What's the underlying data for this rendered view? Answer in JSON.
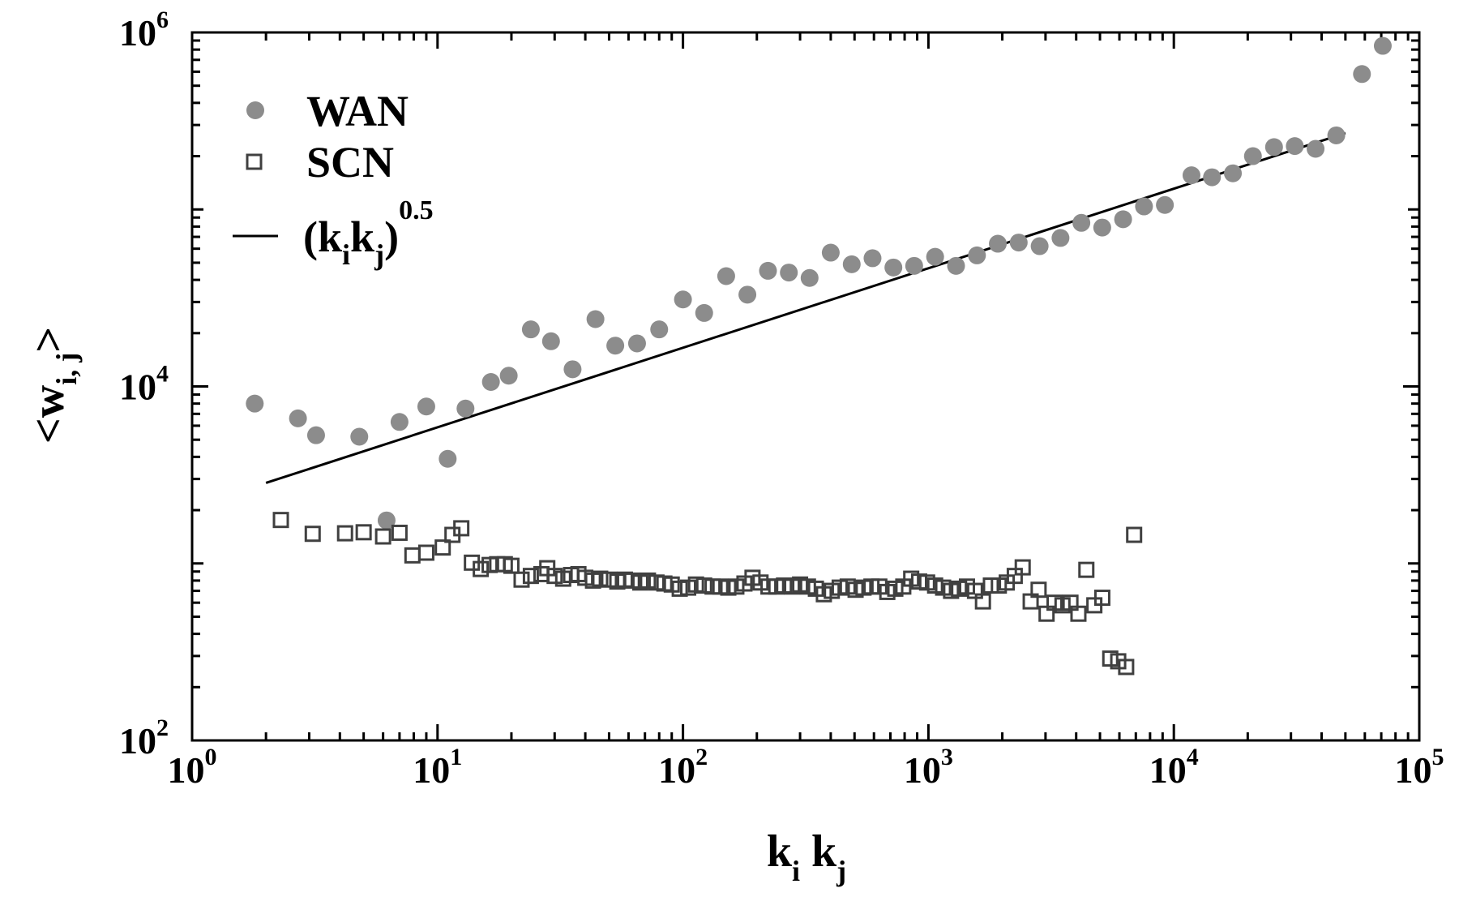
{
  "chart_data": {
    "type": "scatter",
    "xscale": "log",
    "yscale": "log",
    "xlim": [
      1,
      100000
    ],
    "ylim": [
      100,
      1000000
    ],
    "grid": false,
    "legend_position": "top-left",
    "x_ticks": [
      {
        "base": "10",
        "exp": "0",
        "value": 1
      },
      {
        "base": "10",
        "exp": "1",
        "value": 10
      },
      {
        "base": "10",
        "exp": "2",
        "value": 100
      },
      {
        "base": "10",
        "exp": "3",
        "value": 1000
      },
      {
        "base": "10",
        "exp": "4",
        "value": 10000
      },
      {
        "base": "10",
        "exp": "5",
        "value": 100000
      }
    ],
    "y_ticks": [
      {
        "base": "10",
        "exp": "2",
        "value": 100
      },
      {
        "base": "10",
        "exp": "4",
        "value": 10000
      },
      {
        "base": "10",
        "exp": "6",
        "value": 1000000
      }
    ],
    "xlabel": {
      "k1": "k",
      "s1": "i",
      "k2": "k",
      "s2": "j"
    },
    "ylabel": {
      "open": "<w",
      "sub": "i, j",
      "close": ">"
    },
    "series": [
      {
        "name": "WAN",
        "marker": "filled-circle",
        "color": "#8c8c8c",
        "points": [
          [
            1.8,
            8000
          ],
          [
            2.7,
            6600
          ],
          [
            3.2,
            5300
          ],
          [
            4.8,
            5200
          ],
          [
            7.0,
            6300
          ],
          [
            9.0,
            7700
          ],
          [
            11.0,
            3900
          ],
          [
            13.0,
            7500
          ],
          [
            16.5,
            10600
          ],
          [
            19.5,
            11500
          ],
          [
            24.0,
            21000
          ],
          [
            29.0,
            18000
          ],
          [
            35.5,
            12500
          ],
          [
            44.0,
            24000
          ],
          [
            53.0,
            17000
          ],
          [
            65.0,
            17500
          ],
          [
            80.0,
            21000
          ],
          [
            100.0,
            31000
          ],
          [
            122.0,
            26000
          ],
          [
            150.0,
            42000
          ],
          [
            183.0,
            33000
          ],
          [
            222.0,
            45000
          ],
          [
            270.0,
            44000
          ],
          [
            328.0,
            41000
          ],
          [
            400.0,
            57000
          ],
          [
            487.0,
            49000
          ],
          [
            592.0,
            53000
          ],
          [
            720.0,
            47000
          ],
          [
            875.0,
            48000
          ],
          [
            1065.0,
            54000
          ],
          [
            1296.0,
            48000
          ],
          [
            1577.0,
            55000
          ],
          [
            1918.0,
            64000
          ],
          [
            2333.0,
            65000
          ],
          [
            2839.0,
            62000
          ],
          [
            3453.0,
            69000
          ],
          [
            4200.0,
            84000
          ],
          [
            5108.0,
            79000
          ],
          [
            6213.0,
            88000
          ],
          [
            7558.0,
            104000
          ],
          [
            9193.0,
            106000
          ],
          [
            11800.0,
            156000
          ],
          [
            14300.0,
            152000
          ],
          [
            17400.0,
            160000
          ],
          [
            21000.0,
            200000
          ],
          [
            25600.0,
            225000
          ],
          [
            31100.0,
            228000
          ],
          [
            37800.0,
            220000
          ],
          [
            45900.0,
            262000
          ],
          [
            58400.0,
            582000
          ],
          [
            71000.0,
            840000
          ],
          [
            6.2,
            1750
          ]
        ]
      },
      {
        "name": "SCN",
        "marker": "open-square",
        "color": "#404040",
        "points": [
          [
            2.3,
            1760
          ],
          [
            3.1,
            1470
          ],
          [
            4.2,
            1480
          ],
          [
            5.0,
            1500
          ],
          [
            6.0,
            1420
          ],
          [
            7.0,
            1490
          ],
          [
            7.9,
            1110
          ],
          [
            9.0,
            1150
          ],
          [
            10.5,
            1230
          ],
          [
            11.5,
            1450
          ],
          [
            12.5,
            1580
          ],
          [
            13.8,
            1010
          ],
          [
            15.0,
            930
          ],
          [
            16.3,
            980
          ],
          [
            17.5,
            990
          ],
          [
            18.8,
            990
          ],
          [
            20.0,
            970
          ],
          [
            22.0,
            810
          ],
          [
            24.0,
            850
          ],
          [
            26.5,
            870
          ],
          [
            28.0,
            940
          ],
          [
            30.0,
            850
          ],
          [
            32.5,
            820
          ],
          [
            35.0,
            860
          ],
          [
            37.5,
            870
          ],
          [
            40.0,
            830
          ],
          [
            43.0,
            800
          ],
          [
            46.0,
            820
          ],
          [
            50.0,
            810
          ],
          [
            54.0,
            790
          ],
          [
            58.0,
            810
          ],
          [
            62.0,
            800
          ],
          [
            67.0,
            780
          ],
          [
            72.0,
            800
          ],
          [
            78.0,
            780
          ],
          [
            84.0,
            770
          ],
          [
            90.0,
            760
          ],
          [
            97.0,
            720
          ],
          [
            105.0,
            730
          ],
          [
            113.0,
            760
          ],
          [
            122.0,
            750
          ],
          [
            132.0,
            740
          ],
          [
            142.0,
            740
          ],
          [
            153.0,
            730
          ],
          [
            165.0,
            740
          ],
          [
            178.0,
            770
          ],
          [
            192.0,
            830
          ],
          [
            207.0,
            780
          ],
          [
            223.0,
            740
          ],
          [
            240.0,
            740
          ],
          [
            258.0,
            750
          ],
          [
            278.0,
            740
          ],
          [
            300.0,
            760
          ],
          [
            323.0,
            740
          ],
          [
            348.0,
            720
          ],
          [
            375.0,
            670
          ],
          [
            404.0,
            700
          ],
          [
            435.0,
            730
          ],
          [
            469.0,
            740
          ],
          [
            505.0,
            710
          ],
          [
            544.0,
            730
          ],
          [
            586.0,
            740
          ],
          [
            631.0,
            740
          ],
          [
            680.0,
            690
          ],
          [
            733.0,
            720
          ],
          [
            790.0,
            740
          ],
          [
            851.0,
            820
          ],
          [
            917.0,
            790
          ],
          [
            988.0,
            780
          ],
          [
            1065.0,
            750
          ],
          [
            1148.0,
            730
          ],
          [
            1237.0,
            700
          ],
          [
            1333.0,
            720
          ],
          [
            1436.0,
            740
          ],
          [
            1548.0,
            700
          ],
          [
            1668.0,
            610
          ],
          [
            1797.0,
            750
          ],
          [
            1936.0,
            750
          ],
          [
            2086.0,
            780
          ],
          [
            2248.0,
            850
          ],
          [
            2422.0,
            950
          ],
          [
            2610.0,
            610
          ],
          [
            2812.0,
            710
          ],
          [
            3030.0,
            520
          ],
          [
            3265.0,
            600
          ],
          [
            3518.0,
            580
          ],
          [
            3791.0,
            600
          ],
          [
            4085.0,
            520
          ],
          [
            4401.0,
            920
          ],
          [
            4743.0,
            580
          ],
          [
            5111.0,
            640
          ],
          [
            5507.0,
            290
          ],
          [
            5934.0,
            280
          ],
          [
            6394.0,
            260
          ],
          [
            6890.0,
            1450
          ]
        ]
      },
      {
        "name": "(k_i k_j)^0.5",
        "marker": "line",
        "color": "#000000",
        "points": [
          [
            2.0,
            2850
          ],
          [
            50000.0,
            270000
          ]
        ]
      }
    ]
  },
  "legend": [
    {
      "key": "wan",
      "label": "WAN"
    },
    {
      "key": "scn",
      "label": "SCN"
    },
    {
      "key": "fit",
      "label_open": "(k",
      "sub1": "i",
      "label_mid": "k",
      "sub2": "j",
      "label_close": ")",
      "sup": "0.5"
    }
  ]
}
